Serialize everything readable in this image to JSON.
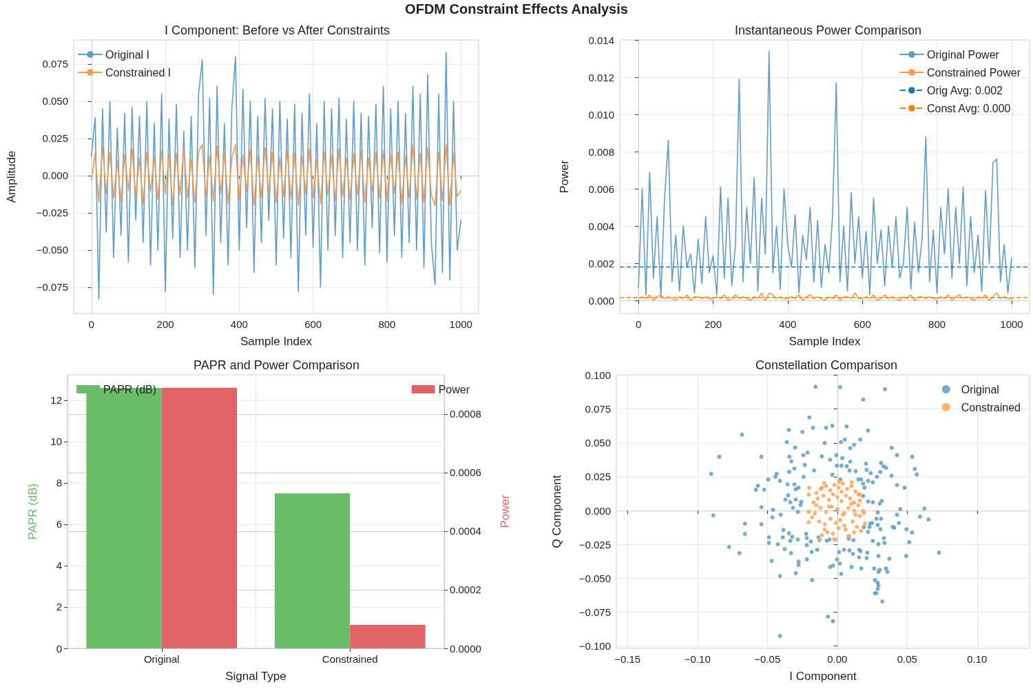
{
  "chart_data": [
    {
      "type": "line",
      "title": "I Component: Before vs After Constraints",
      "annotations": [
        "OFDM Constraint Effects Analysis"
      ],
      "xlabel": "Sample Index",
      "ylabel": "Amplitude",
      "x": [
        0,
        10,
        20,
        30,
        40,
        50,
        60,
        70,
        80,
        90,
        100,
        110,
        120,
        130,
        140,
        150,
        160,
        170,
        180,
        190,
        200,
        210,
        220,
        230,
        240,
        250,
        260,
        270,
        280,
        290,
        300,
        310,
        320,
        330,
        340,
        350,
        360,
        370,
        380,
        390,
        400,
        410,
        420,
        430,
        440,
        450,
        460,
        470,
        480,
        490,
        500,
        510,
        520,
        530,
        540,
        550,
        560,
        570,
        580,
        590,
        600,
        610,
        620,
        630,
        640,
        650,
        660,
        670,
        680,
        690,
        700,
        710,
        720,
        730,
        740,
        750,
        760,
        770,
        780,
        790,
        800,
        810,
        820,
        830,
        840,
        850,
        860,
        870,
        880,
        890,
        900,
        910,
        920,
        930,
        940,
        950,
        960,
        970,
        980,
        990,
        1000
      ],
      "series": [
        {
          "name": "Original I",
          "color": "#5f9ccb",
          "values": [
            0.013,
            0.039,
            -0.083,
            0.045,
            -0.038,
            0.05,
            -0.055,
            0.032,
            -0.04,
            0.042,
            -0.058,
            0.046,
            -0.03,
            0.04,
            -0.045,
            0.05,
            -0.06,
            0.035,
            -0.05,
            0.055,
            -0.078,
            0.038,
            -0.042,
            0.048,
            -0.055,
            0.03,
            -0.05,
            0.04,
            -0.062,
            0.055,
            0.078,
            -0.04,
            0.052,
            -0.08,
            0.06,
            -0.045,
            0.035,
            -0.06,
            0.045,
            0.08,
            -0.05,
            0.058,
            -0.035,
            0.05,
            -0.065,
            0.04,
            -0.045,
            0.052,
            -0.03,
            0.045,
            -0.06,
            0.05,
            -0.042,
            0.038,
            -0.055,
            0.048,
            -0.078,
            0.042,
            -0.04,
            0.055,
            -0.048,
            0.035,
            -0.075,
            0.05,
            -0.05,
            0.045,
            -0.04,
            0.052,
            -0.055,
            0.038,
            -0.045,
            0.05,
            -0.05,
            0.042,
            -0.06,
            0.04,
            -0.035,
            0.048,
            -0.052,
            0.06,
            -0.058,
            0.045,
            -0.04,
            0.05,
            -0.055,
            0.042,
            -0.045,
            0.06,
            -0.05,
            0.055,
            -0.062,
            0.068,
            -0.045,
            -0.073,
            0.055,
            -0.065,
            0.083,
            -0.07,
            0.05,
            -0.05,
            -0.03
          ]
        },
        {
          "name": "Constrained I",
          "color": "#f09a52",
          "values": [
            -0.003,
            0.015,
            -0.018,
            0.02,
            -0.012,
            0.016,
            -0.015,
            0.01,
            -0.017,
            0.014,
            -0.01,
            0.018,
            -0.014,
            0.012,
            -0.019,
            0.016,
            -0.011,
            0.013,
            -0.016,
            0.017,
            -0.012,
            0.014,
            -0.02,
            0.015,
            -0.013,
            0.019,
            -0.015,
            0.011,
            -0.018,
            0.016,
            0.021,
            -0.014,
            0.013,
            -0.017,
            0.02,
            -0.012,
            0.015,
            -0.019,
            0.012,
            0.021,
            -0.016,
            0.014,
            -0.011,
            0.018,
            -0.02,
            0.013,
            -0.015,
            0.019,
            -0.012,
            0.016,
            -0.018,
            0.012,
            -0.014,
            0.017,
            -0.016,
            0.015,
            -0.02,
            0.013,
            -0.012,
            0.018,
            -0.015,
            0.011,
            -0.019,
            0.016,
            -0.013,
            0.014,
            -0.017,
            0.018,
            -0.014,
            0.012,
            -0.016,
            0.015,
            -0.013,
            0.017,
            -0.018,
            0.012,
            -0.011,
            0.016,
            -0.015,
            0.017,
            -0.017,
            0.014,
            -0.012,
            0.016,
            -0.019,
            0.013,
            -0.015,
            0.021,
            -0.016,
            0.015,
            -0.018,
            0.019,
            -0.013,
            -0.02,
            0.016,
            -0.017,
            0.021,
            -0.02,
            0.015,
            -0.014,
            -0.01
          ]
        }
      ],
      "xlim": [
        -48,
        1048
      ],
      "xticks": [
        0,
        200,
        400,
        600,
        800,
        1000
      ],
      "ylim": [
        -0.0926,
        0.0912
      ],
      "yticks": [
        {
          "value": -0.075,
          "label": "−0.075"
        },
        {
          "value": -0.05,
          "label": "−0.050"
        },
        {
          "value": -0.025,
          "label": "−0.025"
        },
        {
          "value": 0,
          "label": "0.000"
        },
        {
          "value": 0.025,
          "label": "0.025"
        },
        {
          "value": 0.05,
          "label": "0.050"
        },
        {
          "value": 0.075,
          "label": "0.075"
        }
      ],
      "grid": true,
      "legend": "top left",
      "marker": "none",
      "line_style": "solid"
    },
    {
      "type": "line",
      "title": "Instantaneous Power Comparison",
      "xlabel": "Sample Index",
      "ylabel": "Power",
      "x": [
        0,
        10,
        20,
        30,
        40,
        50,
        60,
        70,
        80,
        90,
        100,
        110,
        120,
        130,
        140,
        150,
        160,
        170,
        180,
        190,
        200,
        210,
        220,
        230,
        240,
        250,
        260,
        270,
        280,
        290,
        300,
        310,
        320,
        330,
        340,
        350,
        360,
        370,
        380,
        390,
        400,
        410,
        420,
        430,
        440,
        450,
        460,
        470,
        480,
        490,
        500,
        510,
        520,
        530,
        540,
        550,
        560,
        570,
        580,
        590,
        600,
        610,
        620,
        630,
        640,
        650,
        660,
        670,
        680,
        690,
        700,
        710,
        720,
        730,
        740,
        750,
        760,
        770,
        780,
        790,
        800,
        810,
        820,
        830,
        840,
        850,
        860,
        870,
        880,
        890,
        900,
        910,
        920,
        930,
        940,
        950,
        960,
        970,
        980,
        990,
        1000
      ],
      "series": [
        {
          "name": "Original Power",
          "color": "#5f9ccb",
          "values": [
            0.0007,
            0.006,
            0.0003,
            0.0069,
            0.0012,
            0.0045,
            0.0002,
            0.0055,
            0.0086,
            0.001,
            0.0035,
            0.0005,
            0.004,
            0.0018,
            0.0025,
            0.0004,
            0.0033,
            0.0009,
            0.0045,
            0.0015,
            0.0024,
            0.0003,
            0.0061,
            0.0012,
            0.0055,
            0.0008,
            0.003,
            0.0119,
            0.001,
            0.005,
            0.002,
            0.0066,
            0.0005,
            0.0055,
            0.0025,
            0.0134,
            0.0015,
            0.004,
            0.0006,
            0.006,
            0.003,
            0.0018,
            0.0046,
            0.0004,
            0.0035,
            0.0022,
            0.005,
            0.001,
            0.0043,
            0.0007,
            0.003,
            0.0015,
            0.0045,
            0.0117,
            0.001,
            0.004,
            0.0005,
            0.0058,
            0.002,
            0.0045,
            0.0012,
            0.0037,
            0.0003,
            0.0055,
            0.002,
            0.0038,
            0.0008,
            0.004,
            0.0018,
            0.0045,
            0.0012,
            0.002,
            0.005,
            0.0006,
            0.0042,
            0.0015,
            0.0033,
            0.0088,
            0.001,
            0.0038,
            0.0004,
            0.005,
            0.0025,
            0.006,
            0.0012,
            0.005,
            0.002,
            0.0061,
            0.0008,
            0.0045,
            0.0015,
            0.0035,
            0.0005,
            0.0059,
            0.002,
            0.0074,
            0.0076,
            0.001,
            0.003,
            0.0004,
            0.0023
          ]
        },
        {
          "name": "Constrained Power",
          "color": "#fc9a4b",
          "values": [
            0.0001,
            0.0002,
            0.0001,
            0.0003,
            0.0,
            0.0002,
            0.0003,
            0.0001,
            0.0002,
            0.0001,
            0.0,
            0.0002,
            0.0001,
            0.0003,
            0.0,
            0.0002,
            0.0002,
            0.0001,
            0.0002,
            0.0001,
            0.0001,
            0.0002,
            0.0001,
            0.0003,
            0.0,
            0.0001,
            0.0003,
            0.0001,
            0.0002,
            0.0001,
            0.0,
            0.0002,
            0.0001,
            0.0004,
            0.0,
            0.0004,
            0.0003,
            0.0001,
            0.0002,
            0.0001,
            0.0001,
            0.0002,
            0.0001,
            0.0003,
            0.0,
            0.0002,
            0.0003,
            0.0001,
            0.0002,
            0.0001,
            0.0,
            0.0002,
            0.0001,
            0.0003,
            0.0,
            0.0002,
            0.0002,
            0.0001,
            0.0004,
            0.0001,
            0.0001,
            0.0002,
            0.0001,
            0.0003,
            0.0,
            0.0001,
            0.0003,
            0.0001,
            0.0002,
            0.0001,
            0.0,
            0.0002,
            0.0001,
            0.0003,
            0.0,
            0.0002,
            0.0002,
            0.0001,
            0.0002,
            0.0001,
            0.0001,
            0.0002,
            0.0001,
            0.0003,
            0.0,
            0.0002,
            0.0003,
            0.0001,
            0.0002,
            0.0001,
            0.0,
            0.0002,
            0.0001,
            0.0003,
            0.0,
            0.0002,
            0.0004,
            0.0001,
            0.0002,
            0.0001,
            0.0001
          ]
        }
      ],
      "ref_lines": [
        {
          "axis": "y",
          "value": 0.0018,
          "label": "Orig Avg: 0.002",
          "color": "#1f77b4",
          "line_style": "dashed"
        },
        {
          "axis": "y",
          "value": 0.00015,
          "label": "Const Avg: 0.000",
          "color": "#ff7f0e",
          "line_style": "dashed"
        }
      ],
      "xlim": [
        -50,
        1048
      ],
      "xticks": [
        0,
        200,
        400,
        600,
        800,
        1000
      ],
      "ylim": [
        -0.0007,
        0.014
      ],
      "yticks": [
        {
          "value": 0,
          "label": "0.000"
        },
        {
          "value": 0.002,
          "label": "0.002"
        },
        {
          "value": 0.004,
          "label": "0.004"
        },
        {
          "value": 0.006,
          "label": "0.006"
        },
        {
          "value": 0.008,
          "label": "0.008"
        },
        {
          "value": 0.01,
          "label": "0.010"
        },
        {
          "value": 0.012,
          "label": "0.012"
        },
        {
          "value": 0.014,
          "label": "0.014"
        }
      ],
      "grid": true,
      "legend": "top right",
      "marker": "none",
      "line_style": "solid"
    },
    {
      "type": "bar",
      "title": "PAPR and Power Comparison",
      "xlabel": "Signal Type",
      "ylabel": "PAPR (dB)",
      "y2label": "Power",
      "categories": [
        "Original",
        "Constrained"
      ],
      "series": [
        {
          "name": "PAPR (dB)",
          "color": "#6bbd6a",
          "values": [
            12.6,
            7.5
          ]
        },
        {
          "name": "Power",
          "color": "#e06467",
          "axis": "y2",
          "values": [
            0.00089,
            8e-05
          ]
        }
      ],
      "ylim": [
        0,
        13.23
      ],
      "yticks": [
        0,
        2,
        4,
        6,
        8,
        10,
        12
      ],
      "y2lim": [
        0,
        0.000934
      ],
      "y2ticks": [
        {
          "value": 0,
          "label": "0.0000"
        },
        {
          "value": 0.0002,
          "label": "0.0002"
        },
        {
          "value": 0.0004,
          "label": "0.0004"
        },
        {
          "value": 0.0006,
          "label": "0.0006"
        },
        {
          "value": 0.0008,
          "label": "0.0008"
        }
      ],
      "grid": true,
      "legend": "top"
    },
    {
      "type": "scatter",
      "title": "Constellation Comparison",
      "xlabel": "I Component",
      "ylabel": "Q Component",
      "series": [
        {
          "name": "Original",
          "color": "#5f9dc9",
          "x": [
            -0.0156,
            0.0021,
            0.0341,
            0.0185,
            -0.02,
            -0.0681,
            -0.0843,
            -0.0902,
            -0.0887,
            -0.0774,
            -0.07,
            -0.0543,
            -0.0543,
            -0.0661,
            -0.0661,
            -0.041,
            -0.0067,
            -0.0031,
            0.0322,
            0.0727,
            0.0653,
            0.0623,
            0.0592,
            0.0535,
            0.0554,
            0.0568,
            0.0427,
            0.039,
            0.022,
            0.0067,
            -0.0036,
            -0.008,
            -0.0174,
            -0.0249,
            -0.0346,
            -0.0361,
            -0.0302,
            -0.009,
            0.0026,
            0.0054,
            0.012,
            0.0164,
            0.0092,
            -0.0343,
            -0.0328,
            -0.0243,
            -0.0213,
            -0.011,
            -0.0007,
            0.0036,
            -0.0051,
            0.0092,
            -0.0233,
            -0.0307,
            -0.0344,
            -0.0166,
            -0.0003,
            0.003,
            0.0067,
            0.0087,
            0.0131,
            0.0205,
            0.021,
            0.0239,
            0.0313,
            0.033,
            0.0349,
            0.0308,
            0.0284,
            0.0387,
            0.0427,
            0.0481,
            -0.0036,
            -0.0494,
            -0.0443,
            -0.0433,
            -0.041,
            -0.0568,
            -0.0582,
            -0.0523,
            -0.0356,
            -0.0307,
            -0.0297,
            -0.0241,
            -0.0277,
            -0.0371,
            -0.0351,
            -0.0336,
            -0.0297,
            -0.0258,
            -0.0263,
            -0.0317,
            -0.0282,
            -0.0543,
            -0.0459,
            -0.0464,
            -0.0405,
            -0.0385,
            -0.039,
            -0.0489,
            -0.0489,
            -0.0425,
            -0.0346,
            -0.0336,
            -0.0322,
            -0.0376,
            -0.0331,
            -0.0469,
            -0.041,
            -0.0297,
            -0.0277,
            -0.0277,
            -0.0218,
            -0.018,
            -0.0184,
            -0.0144,
            -0.0218,
            -0.0189,
            -0.0282,
            -0.0218,
            -0.0223,
            -0.0075,
            0.0013,
            0.0048,
            0.0087,
            0.0112,
            0.0156,
            0.0166,
            0.0156,
            0.0215,
            0.021,
            0.0294,
            0.0254,
            0.0294,
            0.0338,
            0.0333,
            0.0372,
            0.0492,
            0.0515,
            0.0535,
            0.0495,
            0.0441,
            0.0407,
            0.0397,
            0.0427,
            0.0451,
            0.0313,
            0.0308,
            0.0289,
            0.0279,
            0.0289,
            0.0235,
            0.023,
            0.022,
            0.019,
            0.0249,
            0.0303,
            0.0318,
            0.0254,
            0.022,
            0.0185,
            0.0195,
            0.0185,
            0.0171,
            0.0151,
            0.022,
            0.0254,
            0.0264,
            0.0294,
            0.0303,
            0.0348,
            0.0359,
            0.0269,
            0.0289,
            0.0294,
            0.0289,
            0.0269,
            0.0279,
            0.0102,
            0.0171,
            0.0028,
            -0.0051,
            -0.0031,
            -0.0002,
            0.0018,
            0.0023,
            0.0116,
            0.0082,
            -0.0056,
            -0.0135,
            -0.0128
          ],
          "values": [
            0.0915,
            0.0912,
            0.0897,
            0.082,
            0.0688,
            0.0561,
            0.0398,
            0.0271,
            -0.0035,
            -0.0269,
            -0.0314,
            0.0398,
            -0.0101,
            -0.0096,
            -0.0172,
            -0.0925,
            -0.0783,
            -0.0817,
            -0.0671,
            -0.031,
            -0.0065,
            0.0016,
            -0.0045,
            0.0398,
            0.0308,
            0.0267,
            0.041,
            0.0464,
            0.0591,
            0.0622,
            0.0627,
            0.0612,
            0.0612,
            0.0581,
            0.0596,
            0.0506,
            0.0466,
            0.05,
            0.0506,
            0.0525,
            0.0486,
            0.0525,
            0.0461,
            0.0398,
            0.0364,
            0.041,
            0.0428,
            0.0401,
            0.041,
            0.0388,
            0.0376,
            0.0362,
            0.0337,
            0.0311,
            0.0286,
            0.0296,
            0.0332,
            0.0332,
            0.0328,
            0.0296,
            0.0291,
            0.0347,
            0.0301,
            0.0277,
            0.0352,
            0.0327,
            0.0316,
            0.0286,
            0.025,
            0.0257,
            0.0189,
            0.0169,
            0.0266,
            0.023,
            0.025,
            0.0272,
            0.022,
            0.0184,
            0.0154,
            0.0154,
            0.0194,
            0.0194,
            0.0158,
            0.025,
            0.0169,
            0.0082,
            0.0113,
            0.0062,
            0.0082,
            0.0065,
            0.0042,
            0.0021,
            -0.0009,
            0.0026,
            0.0006,
            -0.005,
            -0.003,
            -0.0142,
            -0.0197,
            -0.0197,
            -0.0238,
            -0.0248,
            -0.0167,
            -0.0223,
            -0.0193,
            -0.0284,
            -0.0314,
            -0.0371,
            -0.0483,
            -0.0462,
            -0.0376,
            -0.0401,
            -0.036,
            -0.0513,
            -0.0305,
            -0.0289,
            -0.0254,
            -0.0228,
            -0.0213,
            -0.0203,
            -0.0172,
            -0.0223,
            -0.0305,
            -0.0289,
            -0.0294,
            -0.032,
            -0.0289,
            -0.0299,
            -0.0345,
            -0.031,
            -0.035,
            -0.0335,
            -0.0223,
            -0.0248,
            -0.0238,
            -0.0203,
            -0.0355,
            -0.0335,
            -0.0233,
            -0.0162,
            -0.0137,
            -0.0091,
            -0.0126,
            -0.0121,
            -0.003,
            0.0011,
            -0.006,
            -0.0137,
            -0.0106,
            -0.006,
            -0.0014,
            -0.0096,
            -0.0121,
            -0.0157,
            -0.0121,
            -0.0091,
            0.0052,
            0.0072,
            0.0062,
            0.0067,
            0.0108,
            0.0169,
            0.0199,
            0.023,
            0.023,
            0.022,
            0.0209,
            -0.0427,
            -0.0452,
            -0.0437,
            -0.0427,
            -0.0452,
            -0.0513,
            -0.0534,
            -0.0554,
            -0.0579,
            -0.061,
            -0.061,
            -0.0416,
            -0.0427,
            -0.0467,
            -0.0416,
            -0.0406,
            -0.036,
            -0.0391,
            0.023,
            -0.0218,
            -0.0208,
            -0.0213,
            -0.0197,
            -0.0218
          ]
        },
        {
          "name": "Constrained",
          "color": "#ffa45c",
          "x": [
            -0.02,
            -0.0205,
            -0.0205,
            -0.0205,
            -0.0126,
            -0.0023,
            -0.0011,
            0.0103,
            0.0198,
            0.019,
            0.0087,
            0.0013,
            -0.0094,
            -0.011,
            0.0153,
            0.0161,
            0.0185,
            -0.015,
            -0.012,
            -0.008,
            -0.005,
            -0.002,
            0.001,
            0.004,
            0.007,
            0.01,
            0.013,
            0.016,
            -0.017,
            -0.014,
            -0.01,
            -0.006,
            -0.003,
            0.0,
            0.003,
            0.006,
            0.009,
            0.012,
            0.015,
            -0.016,
            -0.012,
            -0.008,
            -0.004,
            0.0,
            0.004,
            0.008,
            0.012,
            0.016,
            -0.013,
            -0.009,
            -0.005,
            -0.001,
            0.002,
            0.005,
            0.011,
            0.014,
            -0.018,
            -0.007,
            0.006,
            0.017,
            -0.011,
            -0.003,
            0.008,
            0.013,
            -0.015,
            -0.006,
            0.001,
            0.01,
            0.005,
            -0.009,
            0.012,
            0.003
          ],
          "values": [
            0.0169,
            0.0118,
            -0.0009,
            -0.0086,
            -0.0213,
            -0.0213,
            -0.0213,
            0.021,
            -0.0094,
            -0.0018,
            -0.0187,
            0.0211,
            0.0203,
            0.0169,
            0.0118,
            0.0075,
            -0.0001,
            0.013,
            0.016,
            0.018,
            0.015,
            0.019,
            0.017,
            0.02,
            0.016,
            0.018,
            0.014,
            0.012,
            0.006,
            0.009,
            0.011,
            0.008,
            0.012,
            0.01,
            0.007,
            0.011,
            0.009,
            0.006,
            0.004,
            -0.002,
            0.002,
            -0.001,
            0.003,
            0.001,
            -0.003,
            0.002,
            0.0,
            -0.004,
            -0.008,
            -0.01,
            -0.006,
            -0.009,
            -0.007,
            -0.011,
            -0.008,
            -0.012,
            -0.005,
            -0.016,
            -0.014,
            -0.015,
            -0.018,
            -0.017,
            -0.019,
            -0.003,
            0.004,
            0.003,
            -0.013,
            0.005,
            -0.002,
            -0.014,
            -0.016,
            0.014
          ]
        }
      ],
      "xlim": [
        -0.158,
        0.1375
      ],
      "xticks": [
        {
          "value": -0.15,
          "label": "−0.15"
        },
        {
          "value": -0.1,
          "label": "−0.10"
        },
        {
          "value": -0.05,
          "label": "−0.05"
        },
        {
          "value": 0,
          "label": "0.00"
        },
        {
          "value": 0.05,
          "label": "0.05"
        },
        {
          "value": 0.1,
          "label": "0.10"
        }
      ],
      "ylim": [
        -0.1017,
        0.1003
      ],
      "yticks": [
        {
          "value": -0.1,
          "label": "−0.100"
        },
        {
          "value": -0.075,
          "label": "−0.075"
        },
        {
          "value": -0.05,
          "label": "−0.050"
        },
        {
          "value": -0.025,
          "label": "−0.025"
        },
        {
          "value": 0,
          "label": "0.000"
        },
        {
          "value": 0.025,
          "label": "0.025"
        },
        {
          "value": 0.05,
          "label": "0.050"
        },
        {
          "value": 0.075,
          "label": "0.075"
        },
        {
          "value": 0.1,
          "label": "0.100"
        }
      ],
      "grid": true,
      "legend": "top right",
      "marker": "circle"
    }
  ]
}
